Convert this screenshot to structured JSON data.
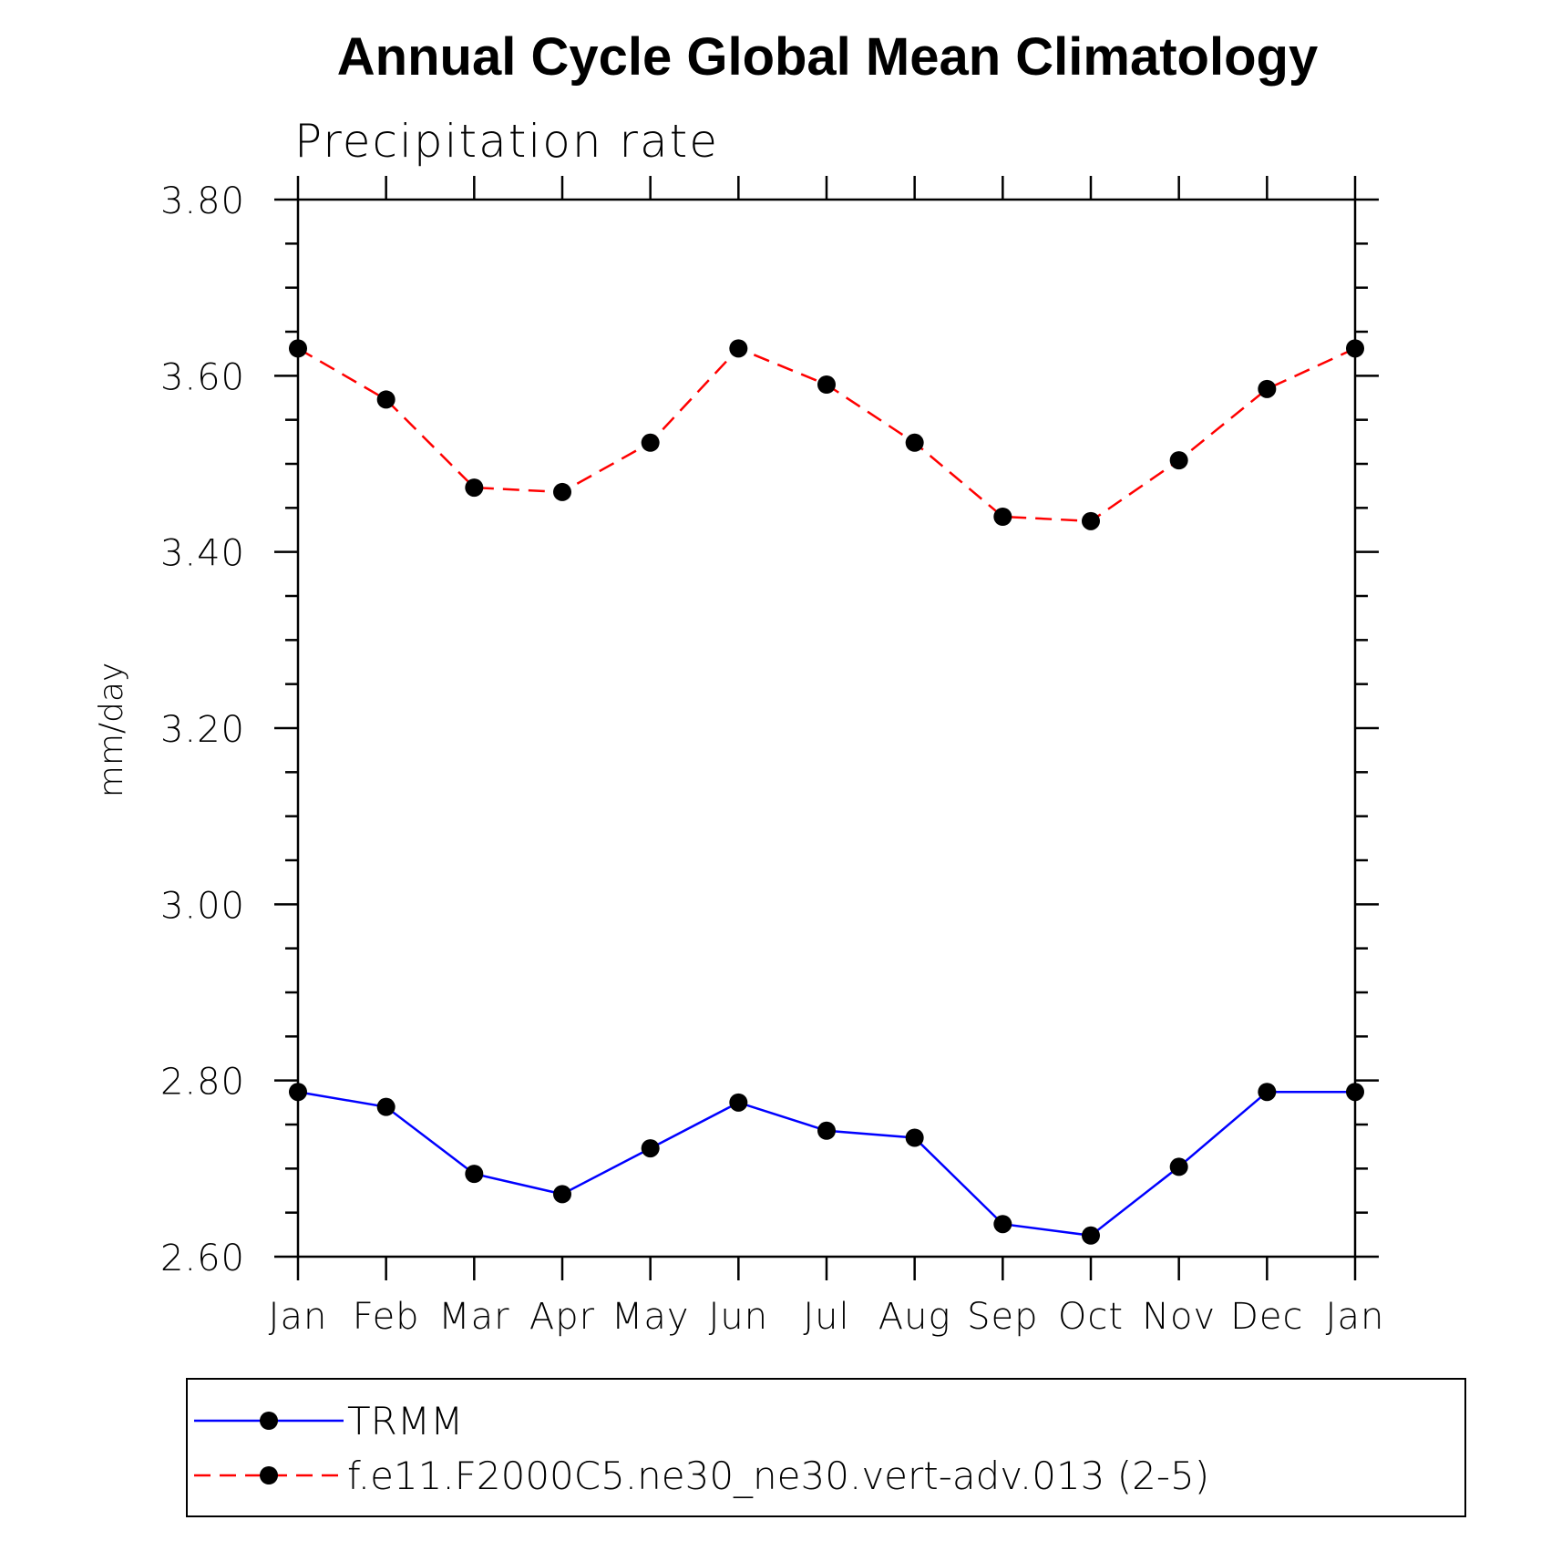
{
  "chart_data": {
    "type": "line",
    "title": "Annual Cycle Global Mean Climatology",
    "subtitle": "Precipitation rate",
    "xlabel": "",
    "ylabel": "mm/day",
    "categories": [
      "Jan",
      "Feb",
      "Mar",
      "Apr",
      "May",
      "Jun",
      "Jul",
      "Aug",
      "Sep",
      "Oct",
      "Nov",
      "Dec",
      "Jan"
    ],
    "ylim": [
      2.6,
      3.8
    ],
    "yticks": [
      "2.60",
      "2.80",
      "3.00",
      "3.20",
      "3.40",
      "3.60",
      "3.80"
    ],
    "grid": false,
    "legend_position": "bottom",
    "series": [
      {
        "name": "TRMM",
        "color": "#0000ff",
        "line_style": "solid",
        "marker": "filled-circle",
        "values": [
          2.787,
          2.77,
          2.694,
          2.671,
          2.723,
          2.775,
          2.743,
          2.735,
          2.637,
          2.624,
          2.702,
          2.787,
          2.787
        ]
      },
      {
        "name": "f.e11.F2000C5.ne30_ne30.vert-adv.013 (2-5)",
        "color": "#ff0000",
        "line_style": "dashed",
        "marker": "filled-circle",
        "values": [
          3.631,
          3.573,
          3.473,
          3.468,
          3.524,
          3.631,
          3.59,
          3.524,
          3.44,
          3.435,
          3.504,
          3.585,
          3.631
        ]
      }
    ]
  }
}
